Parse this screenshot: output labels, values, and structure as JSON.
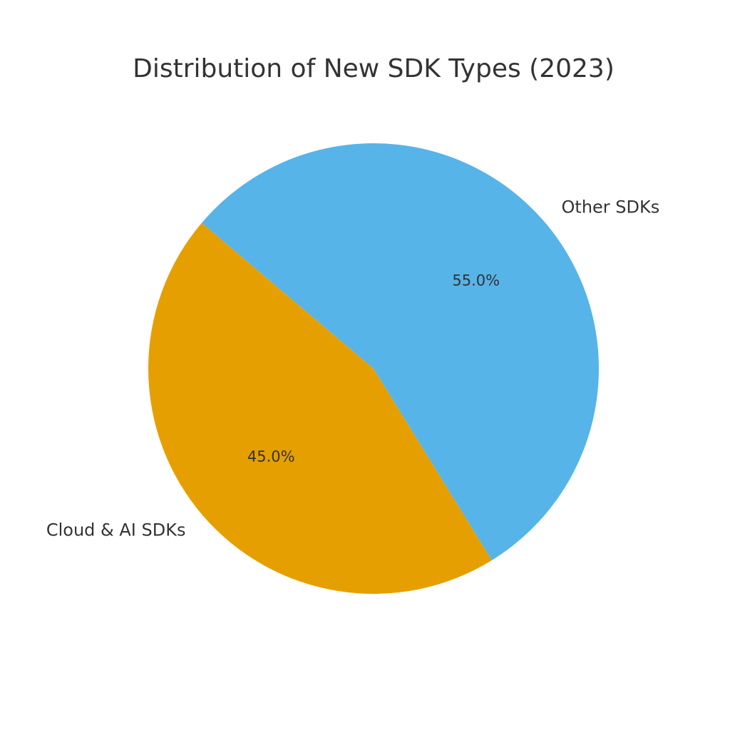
{
  "chart_data": {
    "type": "pie",
    "title": "Distribution of New SDK Types (2023)",
    "slices": [
      {
        "label": "Cloud & AI SDKs",
        "value": 45.0,
        "display": "45.0%",
        "color": "#E69F00"
      },
      {
        "label": "Other SDKs",
        "value": 55.0,
        "display": "55.0%",
        "color": "#56B4E9"
      }
    ],
    "legend": "none"
  }
}
